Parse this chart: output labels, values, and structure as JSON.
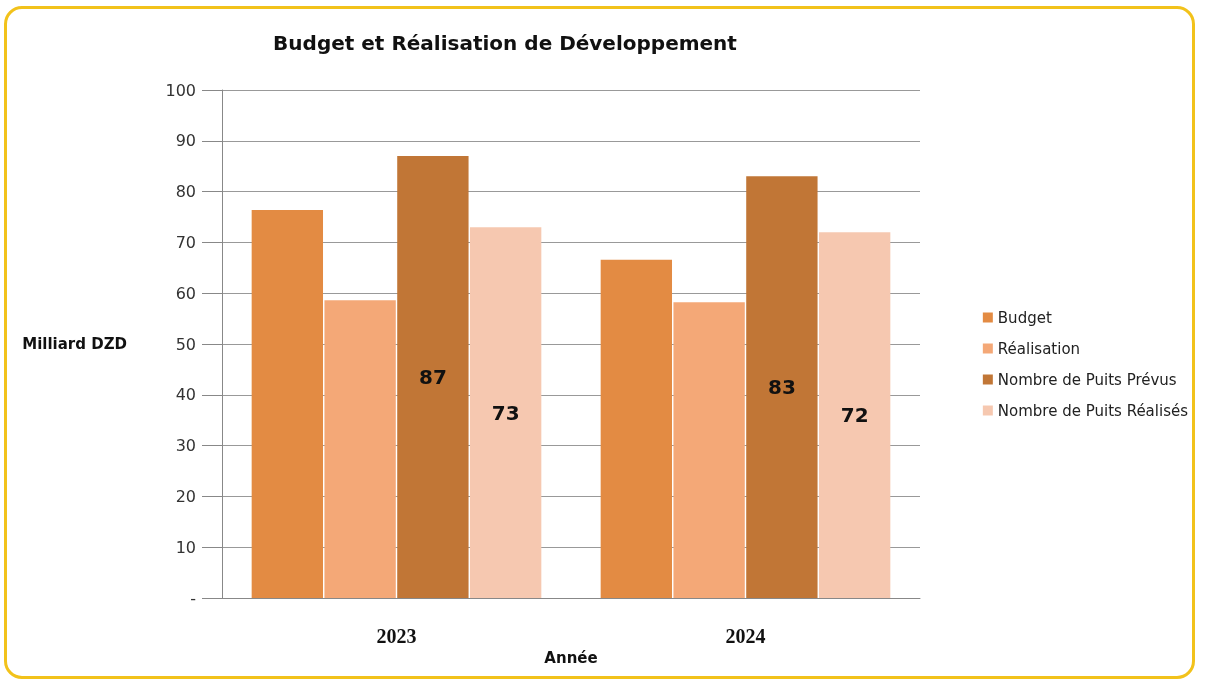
{
  "chart_data": {
    "type": "bar",
    "title": "Budget et Réalisation de Développement",
    "xlabel": "Année",
    "ylabel": "Milliard DZD",
    "categories": [
      "2023",
      "2024"
    ],
    "series": [
      {
        "name": "Budget",
        "color": "#e38b43",
        "values": [
          76.4,
          66.6
        ]
      },
      {
        "name": "Réalisation",
        "color": "#f4a877",
        "values": [
          58.6,
          58.2
        ]
      },
      {
        "name": "Nombre de Puits Prévus",
        "color": "#c17636",
        "values": [
          87,
          83
        ],
        "value_labels": [
          "87",
          "83"
        ]
      },
      {
        "name": "Nombre de Puits Réalisés",
        "color": "#f6c8b0",
        "values": [
          73,
          72
        ],
        "value_labels": [
          "73",
          "72"
        ]
      }
    ],
    "ylim": [
      0,
      100
    ],
    "yticks": [
      {
        "value": 0,
        "label": "-"
      },
      10,
      20,
      30,
      40,
      50,
      60,
      70,
      80,
      90,
      100
    ],
    "grid": "y",
    "legend": "right"
  }
}
